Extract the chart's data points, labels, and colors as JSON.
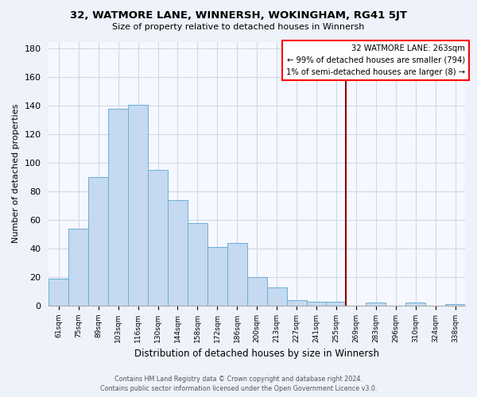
{
  "title": "32, WATMORE LANE, WINNERSH, WOKINGHAM, RG41 5JT",
  "subtitle": "Size of property relative to detached houses in Winnersh",
  "xlabel": "Distribution of detached houses by size in Winnersh",
  "ylabel": "Number of detached properties",
  "bar_labels": [
    "61sqm",
    "75sqm",
    "89sqm",
    "103sqm",
    "116sqm",
    "130sqm",
    "144sqm",
    "158sqm",
    "172sqm",
    "186sqm",
    "200sqm",
    "213sqm",
    "227sqm",
    "241sqm",
    "255sqm",
    "269sqm",
    "283sqm",
    "296sqm",
    "310sqm",
    "324sqm",
    "338sqm"
  ],
  "bar_values": [
    19,
    54,
    90,
    138,
    141,
    95,
    74,
    58,
    41,
    44,
    20,
    13,
    4,
    3,
    3,
    0,
    2,
    0,
    2,
    0,
    1
  ],
  "bar_color": "#c5d9f0",
  "bar_edge_color": "#6baed6",
  "reference_line_x": 14.5,
  "reference_line_color": "#8b0000",
  "annotation_title": "32 WATMORE LANE: 263sqm",
  "annotation_line1": "← 99% of detached houses are smaller (794)",
  "annotation_line2": "1% of semi-detached houses are larger (8) →",
  "ylim": [
    0,
    185
  ],
  "yticks": [
    0,
    20,
    40,
    60,
    80,
    100,
    120,
    140,
    160,
    180
  ],
  "footer_line1": "Contains HM Land Registry data © Crown copyright and database right 2024.",
  "footer_line2": "Contains public sector information licensed under the Open Government Licence v3.0.",
  "background_color": "#eef2fa",
  "grid_color": "#d0d8e8",
  "plot_bg_color": "#f5f8ff"
}
